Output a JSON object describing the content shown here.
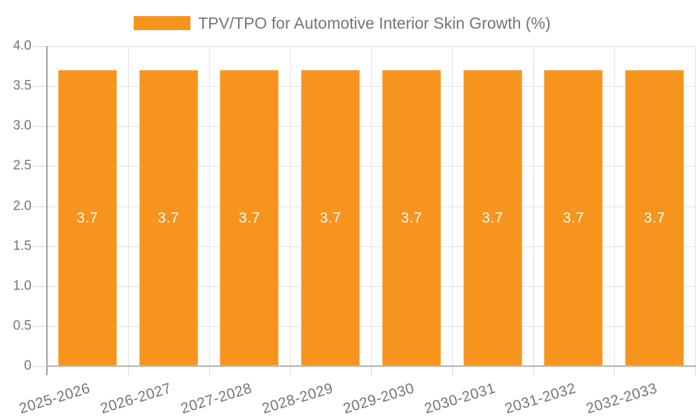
{
  "chart_data": {
    "type": "bar",
    "legend_label": "TPV/TPO for Automotive Interior Skin Growth (%)",
    "legend_position": "top",
    "categories": [
      "2025-2026",
      "2026-2027",
      "2027-2028",
      "2028-2029",
      "2029-2030",
      "2030-2031",
      "2031-2032",
      "2032-2033"
    ],
    "values": [
      3.7,
      3.7,
      3.7,
      3.7,
      3.7,
      3.7,
      3.7,
      3.7
    ],
    "bar_value_labels": [
      "3.7",
      "3.7",
      "3.7",
      "3.7",
      "3.7",
      "3.7",
      "3.7",
      "3.7"
    ],
    "xlabel": "",
    "ylabel": "",
    "ylim": [
      0,
      4
    ],
    "ytick_step": 0.5,
    "ytick_labels": [
      "0",
      "0.5",
      "1.0",
      "1.5",
      "2.0",
      "2.5",
      "3.0",
      "3.5",
      "4.0"
    ],
    "grid": true,
    "colors": {
      "bar": "#F7941E",
      "bar_label": "#FFFFFF",
      "axis_text": "#757575",
      "legend_text": "#757575",
      "gridline": "#E3E3E3",
      "axis_line": "#9E9E9E",
      "baseline": "#B0B0B0",
      "background": "#FFFFFF"
    }
  }
}
